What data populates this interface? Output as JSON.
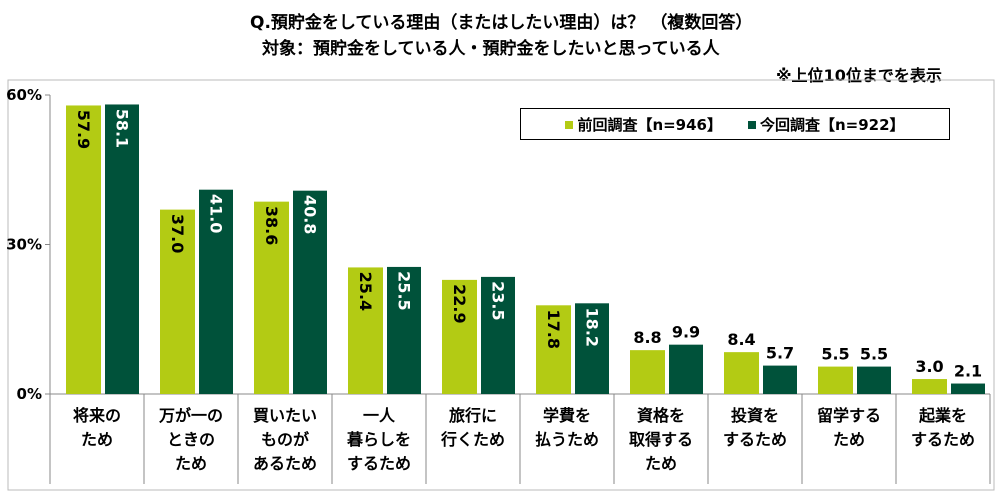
{
  "title": "Q.預貯金をしている理由（またはしたい理由）は？ （複数回答）",
  "subtitle": "対象：預貯金をしている人・預貯金をしたいと思っている人",
  "note": "※上位10位までを表示",
  "chart_data": {
    "type": "bar",
    "categories": [
      "将来の\nため",
      "万が一の\nときの\nため",
      "買いたい\nものが\nあるため",
      "一人\n暮らしを\nするため",
      "旅行に\n行くため",
      "学費を\n払うため",
      "資格を\n取得する\nため",
      "投資を\nするため",
      "留学する\nため",
      "起業を\nするため"
    ],
    "series": [
      {
        "name": "前回調査【n=946】",
        "color": "#b3cb14",
        "values": [
          57.9,
          37.0,
          38.6,
          25.4,
          22.9,
          17.8,
          8.8,
          8.4,
          5.5,
          3.0
        ]
      },
      {
        "name": "今回調査【n=922】",
        "color": "#00523a",
        "values": [
          58.1,
          41.0,
          40.8,
          25.5,
          23.5,
          18.2,
          9.9,
          5.7,
          5.5,
          2.1
        ]
      }
    ],
    "yticks": [
      "0%",
      "30%",
      "60%"
    ],
    "ylim": [
      0,
      60
    ],
    "legend": "top-right",
    "grid": false
  }
}
